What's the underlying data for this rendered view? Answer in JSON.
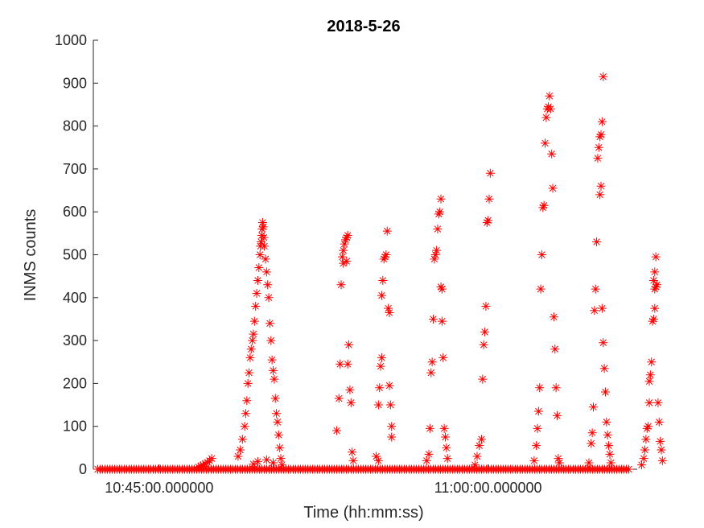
{
  "chart_data": {
    "type": "scatter",
    "title": "2018-5-26",
    "xlabel": "Time (hh:mm:ss)",
    "ylabel": "INMS counts",
    "ylim": [
      0,
      1000
    ],
    "yticks": [
      "0",
      "100",
      "200",
      "300",
      "400",
      "500",
      "600",
      "700",
      "800",
      "900",
      "1000"
    ],
    "xlim_minutes": [
      -3.0,
      21.8
    ],
    "xticks": [
      {
        "minute": 0,
        "label": "10:45:00.000000"
      },
      {
        "minute": 15,
        "label": "11:00:00.000000"
      }
    ],
    "marker": "asterisk",
    "color": "#ff0000",
    "grid": false,
    "baseline": {
      "from_minute": -2.8,
      "to_minute": 21.5,
      "value": 0
    },
    "points": [
      [
        1.8,
        5
      ],
      [
        1.9,
        8
      ],
      [
        2.0,
        10
      ],
      [
        2.1,
        13
      ],
      [
        2.2,
        16
      ],
      [
        2.3,
        20
      ],
      [
        2.4,
        25
      ],
      [
        3.6,
        30
      ],
      [
        3.7,
        45
      ],
      [
        3.8,
        70
      ],
      [
        3.9,
        100
      ],
      [
        3.95,
        130
      ],
      [
        4.0,
        160
      ],
      [
        4.05,
        200
      ],
      [
        4.1,
        225
      ],
      [
        4.15,
        260
      ],
      [
        4.2,
        280
      ],
      [
        4.25,
        300
      ],
      [
        4.3,
        315
      ],
      [
        4.35,
        345
      ],
      [
        4.4,
        380
      ],
      [
        4.45,
        410
      ],
      [
        4.5,
        440
      ],
      [
        4.55,
        470
      ],
      [
        4.6,
        500
      ],
      [
        4.62,
        520
      ],
      [
        4.65,
        530
      ],
      [
        4.68,
        545
      ],
      [
        4.7,
        560
      ],
      [
        4.72,
        575
      ],
      [
        4.75,
        565
      ],
      [
        4.78,
        540
      ],
      [
        4.8,
        520
      ],
      [
        4.85,
        490
      ],
      [
        4.9,
        460
      ],
      [
        4.95,
        430
      ],
      [
        5.0,
        400
      ],
      [
        5.05,
        340
      ],
      [
        5.1,
        300
      ],
      [
        5.15,
        255
      ],
      [
        5.2,
        230
      ],
      [
        5.25,
        210
      ],
      [
        5.3,
        165
      ],
      [
        5.35,
        130
      ],
      [
        5.4,
        110
      ],
      [
        5.45,
        80
      ],
      [
        5.5,
        50
      ],
      [
        5.55,
        25
      ],
      [
        5.6,
        10
      ],
      [
        4.3,
        12
      ],
      [
        4.5,
        18
      ],
      [
        4.9,
        22
      ],
      [
        5.2,
        15
      ],
      [
        8.1,
        90
      ],
      [
        8.2,
        165
      ],
      [
        8.25,
        245
      ],
      [
        8.3,
        430
      ],
      [
        8.35,
        495
      ],
      [
        8.4,
        510
      ],
      [
        8.45,
        525
      ],
      [
        8.5,
        535
      ],
      [
        8.55,
        540
      ],
      [
        8.6,
        545
      ],
      [
        8.4,
        480
      ],
      [
        8.55,
        485
      ],
      [
        8.65,
        290
      ],
      [
        8.6,
        245
      ],
      [
        8.7,
        185
      ],
      [
        8.75,
        155
      ],
      [
        8.8,
        40
      ],
      [
        8.85,
        20
      ],
      [
        9.9,
        30
      ],
      [
        10.0,
        150
      ],
      [
        10.05,
        190
      ],
      [
        10.1,
        240
      ],
      [
        10.15,
        260
      ],
      [
        10.15,
        405
      ],
      [
        10.2,
        440
      ],
      [
        10.25,
        490
      ],
      [
        10.3,
        495
      ],
      [
        10.35,
        500
      ],
      [
        10.4,
        555
      ],
      [
        10.45,
        375
      ],
      [
        10.5,
        365
      ],
      [
        10.5,
        195
      ],
      [
        10.55,
        150
      ],
      [
        10.6,
        100
      ],
      [
        10.6,
        75
      ],
      [
        10.0,
        20
      ],
      [
        12.2,
        20
      ],
      [
        12.3,
        35
      ],
      [
        12.35,
        95
      ],
      [
        12.4,
        225
      ],
      [
        12.45,
        250
      ],
      [
        12.5,
        350
      ],
      [
        12.55,
        490
      ],
      [
        12.6,
        500
      ],
      [
        12.65,
        510
      ],
      [
        12.7,
        560
      ],
      [
        12.75,
        595
      ],
      [
        12.8,
        600
      ],
      [
        12.85,
        630
      ],
      [
        12.85,
        425
      ],
      [
        12.9,
        420
      ],
      [
        12.9,
        345
      ],
      [
        12.95,
        260
      ],
      [
        13.0,
        95
      ],
      [
        13.05,
        75
      ],
      [
        13.1,
        50
      ],
      [
        13.15,
        25
      ],
      [
        14.4,
        10
      ],
      [
        14.5,
        30
      ],
      [
        14.6,
        55
      ],
      [
        14.7,
        70
      ],
      [
        14.75,
        210
      ],
      [
        14.8,
        290
      ],
      [
        14.85,
        320
      ],
      [
        14.9,
        380
      ],
      [
        14.95,
        575
      ],
      [
        15.0,
        580
      ],
      [
        15.05,
        630
      ],
      [
        15.1,
        690
      ],
      [
        17.1,
        20
      ],
      [
        17.2,
        55
      ],
      [
        17.25,
        95
      ],
      [
        17.3,
        135
      ],
      [
        17.35,
        190
      ],
      [
        17.4,
        420
      ],
      [
        17.45,
        500
      ],
      [
        17.5,
        610
      ],
      [
        17.55,
        615
      ],
      [
        17.6,
        760
      ],
      [
        17.65,
        820
      ],
      [
        17.7,
        840
      ],
      [
        17.75,
        845
      ],
      [
        17.8,
        870
      ],
      [
        17.85,
        840
      ],
      [
        17.9,
        735
      ],
      [
        17.95,
        655
      ],
      [
        18.0,
        355
      ],
      [
        18.05,
        280
      ],
      [
        18.1,
        190
      ],
      [
        18.15,
        125
      ],
      [
        18.2,
        25
      ],
      [
        18.25,
        15
      ],
      [
        19.6,
        15
      ],
      [
        19.7,
        60
      ],
      [
        19.75,
        85
      ],
      [
        19.8,
        145
      ],
      [
        19.85,
        370
      ],
      [
        19.9,
        420
      ],
      [
        19.95,
        530
      ],
      [
        20.0,
        725
      ],
      [
        20.05,
        750
      ],
      [
        20.1,
        775
      ],
      [
        20.15,
        780
      ],
      [
        20.2,
        810
      ],
      [
        20.25,
        915
      ],
      [
        20.1,
        640
      ],
      [
        20.15,
        660
      ],
      [
        20.2,
        375
      ],
      [
        20.25,
        295
      ],
      [
        20.3,
        235
      ],
      [
        20.35,
        180
      ],
      [
        20.4,
        110
      ],
      [
        20.45,
        80
      ],
      [
        20.5,
        55
      ],
      [
        20.55,
        35
      ],
      [
        20.6,
        15
      ],
      [
        22.0,
        10
      ],
      [
        22.1,
        25
      ],
      [
        22.15,
        45
      ],
      [
        22.2,
        70
      ],
      [
        22.25,
        95
      ],
      [
        22.3,
        100
      ],
      [
        22.35,
        155
      ],
      [
        22.35,
        205
      ],
      [
        22.4,
        220
      ],
      [
        22.45,
        250
      ],
      [
        22.5,
        345
      ],
      [
        22.55,
        350
      ],
      [
        22.6,
        375
      ],
      [
        22.6,
        420
      ],
      [
        22.65,
        425
      ],
      [
        22.7,
        430
      ],
      [
        22.55,
        440
      ],
      [
        22.6,
        460
      ],
      [
        22.65,
        495
      ],
      [
        22.75,
        155
      ],
      [
        22.8,
        110
      ],
      [
        22.85,
        65
      ],
      [
        22.9,
        45
      ],
      [
        22.95,
        20
      ]
    ]
  }
}
